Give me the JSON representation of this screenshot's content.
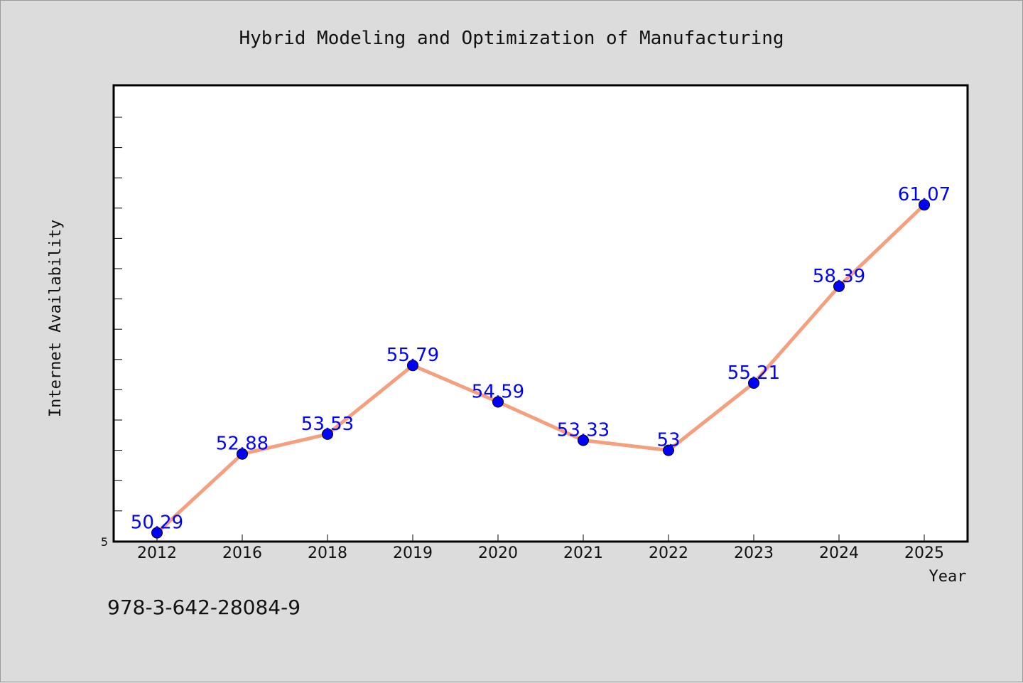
{
  "chart_data": {
    "type": "line",
    "title": "Hybrid Modeling and Optimization of Manufacturing",
    "xlabel": "Year",
    "ylabel": "Internet Availability",
    "categories": [
      "2012",
      "2016",
      "2018",
      "2019",
      "2020",
      "2021",
      "2022",
      "2023",
      "2024",
      "2025"
    ],
    "series": [
      {
        "values": [
          50.29,
          52.88,
          53.53,
          55.79,
          54.59,
          53.33,
          53.0,
          55.21,
          58.39,
          61.07
        ]
      }
    ],
    "data_labels": [
      "50.29",
      "52.88",
      "53.53",
      "55.79",
      "54.59",
      "53.33",
      "53",
      "55.21",
      "58.39",
      "61.07"
    ],
    "y_tick_label": "5",
    "ylim": [
      50.0,
      65.0
    ],
    "grid": false,
    "line_color": "#f4a07e",
    "marker_color": "#0000ff",
    "label_color": "#0000ff"
  },
  "footer_text": "978-3-642-28084-9"
}
